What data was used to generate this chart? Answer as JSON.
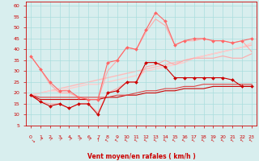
{
  "x": [
    0,
    1,
    2,
    3,
    4,
    5,
    6,
    7,
    8,
    9,
    10,
    11,
    12,
    13,
    14,
    15,
    16,
    17,
    18,
    19,
    20,
    21,
    22,
    23
  ],
  "line_configs": [
    {
      "values": [
        37,
        31,
        24,
        20,
        20,
        18,
        17,
        17,
        30,
        35,
        41,
        40,
        48,
        54,
        51,
        42,
        44,
        44,
        45,
        44,
        44,
        43,
        44,
        39
      ],
      "color": "#ffaaaa",
      "lw": 0.8,
      "marker": null,
      "ms": 0,
      "zorder": 2
    },
    {
      "values": [
        19,
        16,
        15,
        15,
        13,
        15,
        15,
        11,
        20,
        22,
        25,
        25,
        32,
        33,
        35,
        33,
        35,
        36,
        36,
        36,
        37,
        36,
        36,
        38
      ],
      "color": "#ffaaaa",
      "lw": 0.8,
      "marker": null,
      "ms": 0,
      "zorder": 2
    },
    {
      "values": [
        19,
        20,
        21,
        22,
        23,
        24,
        25,
        26,
        27,
        28,
        29,
        30,
        31,
        32,
        33,
        34,
        35,
        36,
        37,
        38,
        39,
        40,
        41,
        42
      ],
      "color": "#ffbbbb",
      "lw": 1.0,
      "marker": null,
      "ms": 0,
      "zorder": 1
    },
    {
      "values": [
        19,
        20,
        21,
        21,
        22,
        23,
        24,
        24,
        25,
        26,
        27,
        28,
        30,
        31,
        32,
        33,
        34,
        36,
        37,
        38,
        39,
        40,
        41,
        43
      ],
      "color": "#ffcccc",
      "lw": 1.0,
      "marker": null,
      "ms": 0,
      "zorder": 1
    },
    {
      "values": [
        37,
        31,
        25,
        21,
        21,
        18,
        17,
        17,
        34,
        35,
        41,
        40,
        49,
        57,
        53,
        42,
        44,
        45,
        45,
        44,
        44,
        43,
        44,
        45
      ],
      "color": "#ff6666",
      "lw": 0.8,
      "marker": "D",
      "ms": 2.0,
      "zorder": 3
    },
    {
      "values": [
        19,
        16,
        14,
        15,
        13,
        15,
        15,
        10,
        20,
        21,
        25,
        25,
        34,
        34,
        32,
        27,
        27,
        27,
        27,
        27,
        27,
        26,
        23,
        23
      ],
      "color": "#cc0000",
      "lw": 0.8,
      "marker": "D",
      "ms": 2.0,
      "zorder": 4
    },
    {
      "values": [
        19,
        17,
        17,
        17,
        17,
        17,
        17,
        17,
        18,
        18,
        19,
        19,
        20,
        20,
        21,
        21,
        22,
        22,
        22,
        23,
        23,
        23,
        23,
        23
      ],
      "color": "#cc0000",
      "lw": 0.8,
      "marker": null,
      "ms": 0,
      "zorder": 2
    },
    {
      "values": [
        19,
        18,
        18,
        18,
        18,
        18,
        18,
        18,
        18,
        19,
        19,
        20,
        21,
        21,
        22,
        22,
        23,
        23,
        24,
        24,
        24,
        24,
        24,
        24
      ],
      "color": "#dd4444",
      "lw": 0.8,
      "marker": null,
      "ms": 0,
      "zorder": 2
    }
  ],
  "xlabel": "Vent moyen/en rafales ( km/h )",
  "xlim": [
    -0.5,
    23.5
  ],
  "ylim": [
    5,
    62
  ],
  "yticks": [
    5,
    10,
    15,
    20,
    25,
    30,
    35,
    40,
    45,
    50,
    55,
    60
  ],
  "xticks": [
    0,
    1,
    2,
    3,
    4,
    5,
    6,
    7,
    8,
    9,
    10,
    11,
    12,
    13,
    14,
    15,
    16,
    17,
    18,
    19,
    20,
    21,
    22,
    23
  ],
  "background_color": "#d8eeee",
  "grid_color": "#aadddd",
  "tick_color": "#cc0000",
  "label_color": "#cc0000",
  "arrow_angles": [
    225,
    315,
    315,
    315,
    315,
    315,
    315,
    0,
    45,
    45,
    45,
    45,
    45,
    45,
    45,
    45,
    45,
    45,
    45,
    45,
    45,
    45,
    45,
    45
  ]
}
